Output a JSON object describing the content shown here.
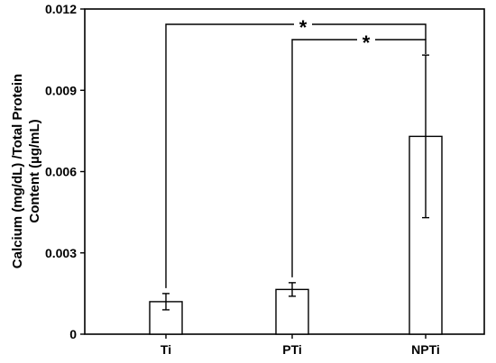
{
  "chart_data": {
    "type": "bar",
    "title": "",
    "xlabel": "",
    "ylabel_lines": [
      "Calcium (mg/dL) /Total Protein",
      "Content (µg/mL)"
    ],
    "categories": [
      "Ti",
      "PTi",
      "NPTi"
    ],
    "values": [
      0.0012,
      0.00165,
      0.0073
    ],
    "error_bars": [
      0.0003,
      0.00025,
      0.003
    ],
    "ylim": [
      0,
      0.012
    ],
    "yticks": [
      0,
      0.003,
      0.006,
      0.009,
      0.012
    ],
    "ytick_labels": [
      "0",
      "0.003",
      "0.006",
      "0.009",
      "0.012"
    ],
    "grid": false,
    "legend": "none",
    "significance": [
      {
        "from": "Ti",
        "to": "NPTi",
        "label": "*"
      },
      {
        "from": "PTi",
        "to": "NPTi",
        "label": "*"
      }
    ],
    "bar_fill": "#ffffff",
    "stroke_color": "#000000"
  }
}
